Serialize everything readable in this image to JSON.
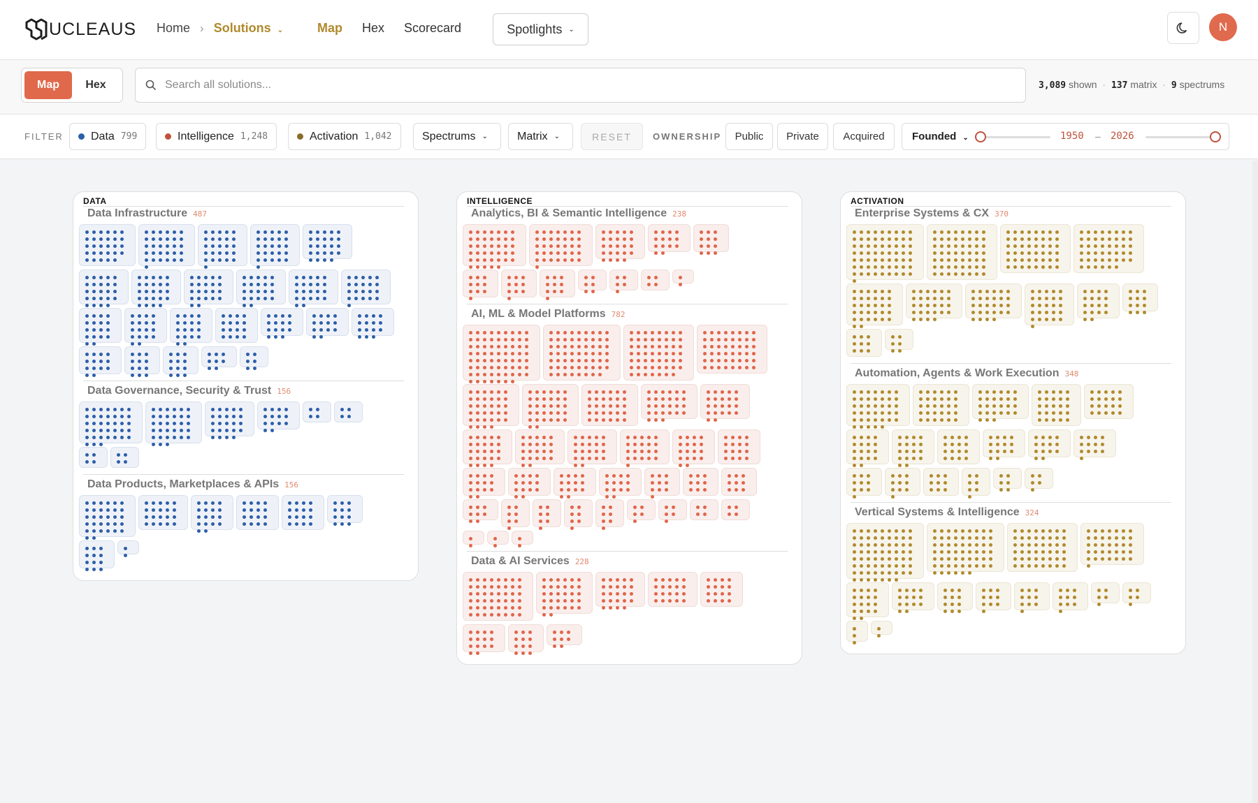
{
  "brand": {
    "logo_text": "UCLEAUS",
    "logo_icon": "nucleaus-logo-icon"
  },
  "nav": {
    "home": "Home",
    "solutions": "Solutions",
    "links": [
      "Map",
      "Hex",
      "Scorecard"
    ],
    "active_link": "Map",
    "spotlights": "Spotlights",
    "avatar_initial": "N"
  },
  "view_toggle": {
    "map": "Map",
    "hex": "Hex",
    "selected": "Map"
  },
  "search": {
    "placeholder": "Search all solutions..."
  },
  "stats": {
    "shown_value": "3,089",
    "shown_label": "shown",
    "matrix_value": "137",
    "matrix_label": "matrix",
    "spectrums_value": "9",
    "spectrums_label": "spectrums"
  },
  "filter": {
    "label": "FILTER",
    "categories": [
      {
        "name": "Data",
        "count": "799",
        "color": "#2e5fa8"
      },
      {
        "name": "Intelligence",
        "count": "1,248",
        "color": "#c0513d"
      },
      {
        "name": "Activation",
        "count": "1,042",
        "color": "#8a6b2a"
      }
    ],
    "spectrums": "Spectrums",
    "matrix": "Matrix",
    "reset": "RESET",
    "ownership_label": "OWNERSHIP",
    "ownership": [
      "Public",
      "Private",
      "Acquired"
    ],
    "founded": {
      "label": "Founded",
      "from": "1950",
      "to": "2026",
      "dash": "–"
    }
  },
  "palette": {
    "data": {
      "dot": "#2d5ea8",
      "fill": "#eef2f8",
      "border": "#d7e0ee",
      "count": "#e0896e"
    },
    "intelligence": {
      "dot": "#e0654a",
      "fill": "#f9eeec",
      "border": "#f0dcd8",
      "count": "#e0896e"
    },
    "activation": {
      "dot": "#b08a2c",
      "fill": "#f7f4ec",
      "border": "#ebe5d4",
      "count": "#e0896e"
    }
  },
  "panels": [
    {
      "key": "data",
      "title": "DATA",
      "sections": [
        {
          "title": "Data Infrastructure",
          "count": "487",
          "rows": [
            [
              29,
              31,
              26,
              26,
              24
            ],
            [
              24,
              24,
              22,
              22,
              22,
              21
            ],
            [
              18,
              18,
              18,
              16,
              15,
              14,
              15
            ],
            [
              14,
              12,
              12,
              8,
              6
            ]
          ]
        },
        {
          "title": "Data Governance, Security & Trust",
          "count": "156",
          "rows": [
            [
              38,
              33,
              24,
              14,
              4,
              4
            ],
            [
              4,
              4
            ]
          ]
        },
        {
          "title": "Data Products, Marketplaces & APIs",
          "count": "156",
          "rows": [
            [
              32,
              20,
              18,
              16,
              16,
              12
            ],
            [
              12,
              2
            ]
          ]
        }
      ]
    },
    {
      "key": "intelligence",
      "title": "INTELLIGENCE",
      "sections": [
        {
          "title": "Analytics, BI & Semantic Intelligence",
          "count": "238",
          "rows": [
            [
              40,
              36,
              24,
              14,
              12
            ],
            [
              10,
              10,
              10,
              6,
              5,
              4,
              2
            ]
          ]
        },
        {
          "title": "AI, ML & Model Platforms",
          "count": "782",
          "rows": [
            [
              70,
              62,
              55,
              48
            ],
            [
              34,
              32,
              30,
              27,
              22
            ],
            [
              24,
              22,
              22,
              21,
              18,
              16
            ],
            [
              14,
              14,
              14,
              14,
              10,
              9,
              9
            ],
            [
              8,
              7,
              7,
              7,
              7,
              5,
              5,
              4,
              4
            ],
            [
              2,
              2,
              2
            ]
          ]
        },
        {
          "title": "Data & AI Services",
          "count": "228",
          "rows": [
            [
              48,
              32,
              24,
              20,
              16
            ],
            [
              14,
              12,
              8
            ]
          ]
        }
      ]
    },
    {
      "key": "activation",
      "title": "ACTIVATION",
      "sections": [
        {
          "title": "Enterprise Systems & CX",
          "count": "370",
          "rows": [
            [
              64,
              56,
              48,
              46
            ],
            [
              32,
              28,
              28,
              26,
              18,
              12
            ],
            [
              9,
              6
            ]
          ]
        },
        {
          "title": "Automation, Agents & Work Execution",
          "count": "348",
          "rows": [
            [
              40,
              30,
              27,
              25,
              20
            ],
            [
              18,
              18,
              16,
              14,
              14,
              13
            ],
            [
              10,
              10,
              9,
              7,
              6,
              5
            ]
          ]
        },
        {
          "title": "Vertical Systems & Intelligence",
          "count": "324",
          "rows": [
            [
              70,
              60,
              48,
              36,
              28
            ],
            [
              18,
              14,
              12,
              10,
              10,
              10,
              5,
              5
            ],
            [
              3,
              2
            ]
          ]
        }
      ]
    }
  ]
}
